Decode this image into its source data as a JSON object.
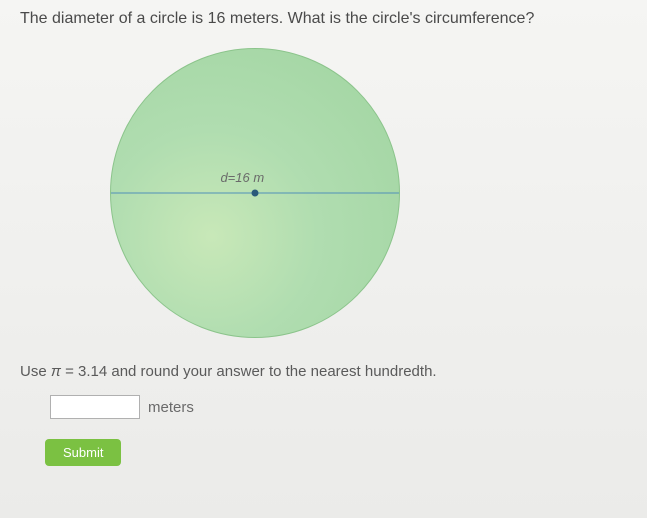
{
  "question_text": "The diameter of a circle is 16 meters. What is the circle's circumference?",
  "diagram": {
    "type": "circle",
    "diameter_label": "d=16 m",
    "circle_fill_inner": "#c8e8b8",
    "circle_fill_outer": "#a0d4a0",
    "circle_border": "#8bc48b",
    "line_color": "#5090b8",
    "center_dot_color": "#2a5a7a",
    "label_color": "#6a6a6a",
    "label_fontsize": 13
  },
  "instruction_prefix": "Use ",
  "instruction_pi": "π",
  "instruction_equals": " = 3.14 and round your answer to the nearest hundredth.",
  "answer": {
    "value": "",
    "unit": "meters"
  },
  "submit_label": "Submit"
}
